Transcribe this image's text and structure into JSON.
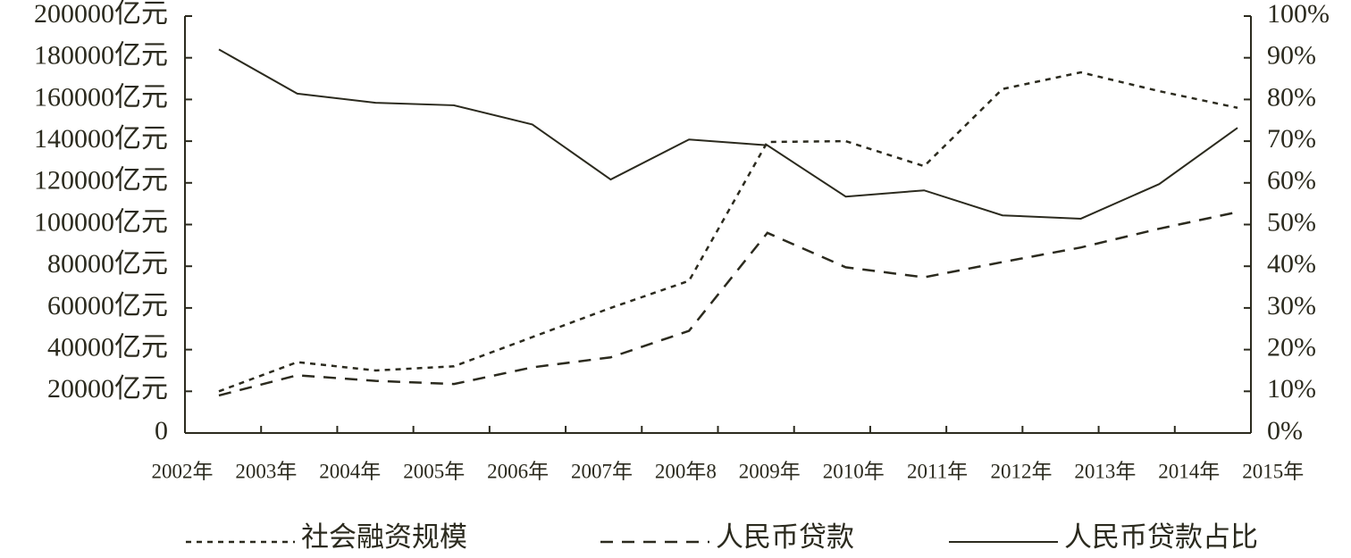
{
  "chart_data": {
    "type": "line",
    "categories": [
      "2002年",
      "2003年",
      "2004年",
      "2005年",
      "2006年",
      "2007年",
      "200年8",
      "2009年",
      "2010年",
      "2011年",
      "2012年",
      "2013年",
      "2014年",
      "2015年"
    ],
    "series": [
      {
        "name": "社会融资规模",
        "color": "#2b2a1e",
        "dash": "dotted",
        "axis": "y",
        "values": [
          20000,
          34000,
          30000,
          32000,
          46000,
          60000,
          73000,
          139600,
          140000,
          128000,
          165000,
          173000,
          164000,
          156000
        ]
      },
      {
        "name": "人民币贷款",
        "color": "#2b2a1e",
        "dash": "dashed",
        "axis": "y",
        "values": [
          18000,
          27700,
          25000,
          23500,
          31500,
          36300,
          49000,
          96000,
          79500,
          74700,
          82000,
          89000,
          98000,
          106000
        ]
      },
      {
        "name": "人民币贷款占比",
        "color": "#2b2a1e",
        "dash": "solid",
        "axis": "y2",
        "values": [
          92,
          81.4,
          79.2,
          78.6,
          74,
          60.8,
          70.4,
          69,
          56.7,
          58.2,
          52.2,
          51.4,
          59.7,
          73.2
        ]
      }
    ],
    "ylim": [
      0,
      200000
    ],
    "yticks": [
      0,
      {
        "value": 20000,
        "label": "20000亿元"
      },
      {
        "value": 40000,
        "label": "40000亿元"
      },
      {
        "value": 60000,
        "label": "60000亿元"
      },
      {
        "value": 80000,
        "label": "80000亿元"
      },
      {
        "value": 100000,
        "label": "100000亿元"
      },
      {
        "value": 120000,
        "label": "120000亿元"
      },
      {
        "value": 140000,
        "label": "140000亿元"
      },
      {
        "value": 160000,
        "label": "160000亿元"
      },
      {
        "value": 180000,
        "label": "180000亿元"
      },
      {
        "value": 200000,
        "label": "200000亿元"
      }
    ],
    "y2lim": [
      0,
      100
    ],
    "y2ticks": [
      {
        "value": 0,
        "label": "0%"
      },
      {
        "value": 10,
        "label": "10%"
      },
      {
        "value": 20,
        "label": "20%"
      },
      {
        "value": 30,
        "label": "30%"
      },
      {
        "value": 40,
        "label": "40%"
      },
      {
        "value": 50,
        "label": "50%"
      },
      {
        "value": 60,
        "label": "60%"
      },
      {
        "value": 70,
        "label": "70%"
      },
      {
        "value": 80,
        "label": "80%"
      },
      {
        "value": 90,
        "label": "90%"
      },
      {
        "value": 100,
        "label": "100%"
      }
    ],
    "grid": false,
    "legend": "bottom"
  }
}
